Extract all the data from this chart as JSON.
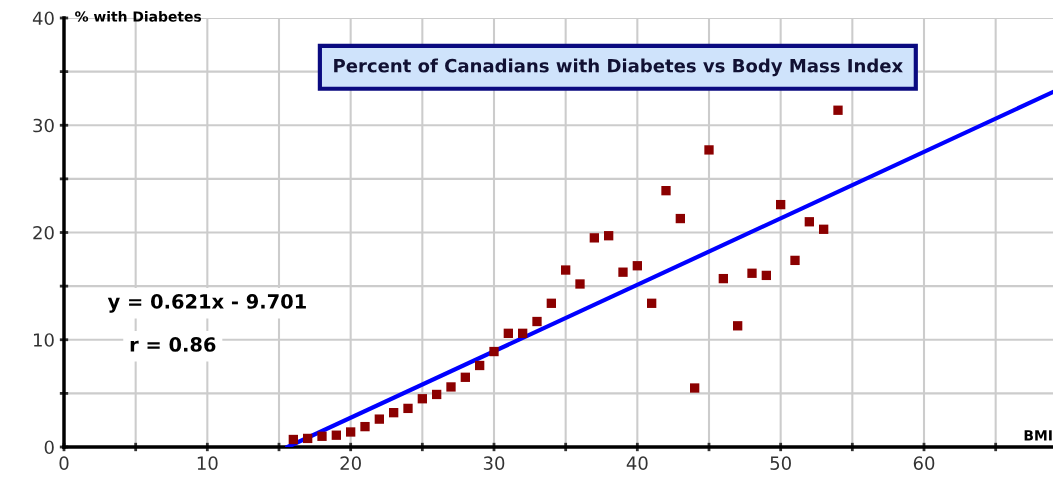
{
  "chart_data": {
    "type": "scatter",
    "title": "Percent of Canadians with Diabetes vs Body Mass Index",
    "xlabel": "BMI",
    "ylabel": "% with Diabetes",
    "annotations": [
      "y = 0.621x - 9.701",
      "r = 0.86"
    ],
    "xlim": [
      0,
      69
    ],
    "ylim": [
      0,
      40
    ],
    "xticks": [
      0,
      {
        "value": 5,
        "label": null
      },
      10,
      {
        "value": 15,
        "label": null
      },
      20,
      {
        "value": 25,
        "label": null
      },
      30,
      {
        "value": 35,
        "label": null
      },
      40,
      {
        "value": 45,
        "label": null
      },
      50,
      {
        "value": 55,
        "label": null
      },
      60,
      {
        "value": 65,
        "label": null
      }
    ],
    "yticks": [
      0,
      {
        "value": 5,
        "label": null
      },
      10,
      {
        "value": 15,
        "label": null
      },
      20,
      {
        "value": 25,
        "label": null
      },
      30,
      {
        "value": 35,
        "label": null
      },
      40
    ],
    "grid": true,
    "marker": "square",
    "series": [
      {
        "color": "#8b0000",
        "x": [
          16,
          17,
          18,
          19,
          20,
          21,
          22,
          23,
          24,
          25,
          26,
          27,
          28,
          29,
          30,
          31,
          32,
          33,
          34,
          35,
          36,
          37,
          38,
          39,
          40,
          41,
          42,
          43,
          44,
          45,
          46,
          47,
          48,
          49,
          50,
          51,
          52,
          53,
          54
        ],
        "values": [
          0.7,
          0.8,
          1.0,
          1.1,
          1.4,
          1.9,
          2.6,
          3.2,
          3.6,
          4.5,
          4.9,
          5.6,
          6.5,
          7.6,
          8.9,
          10.6,
          10.6,
          11.7,
          13.4,
          16.5,
          15.2,
          19.5,
          19.7,
          16.3,
          16.9,
          13.4,
          23.9,
          21.3,
          5.5,
          27.7,
          15.7,
          11.3,
          16.2,
          16.0,
          22.6,
          17.4,
          21.0,
          20.3,
          31.4
        ]
      },
      {
        "type": "line",
        "color": "#0000ff",
        "x": [
          15.6,
          69
        ],
        "values": [
          0,
          33.1
        ],
        "marker": "none"
      }
    ]
  }
}
